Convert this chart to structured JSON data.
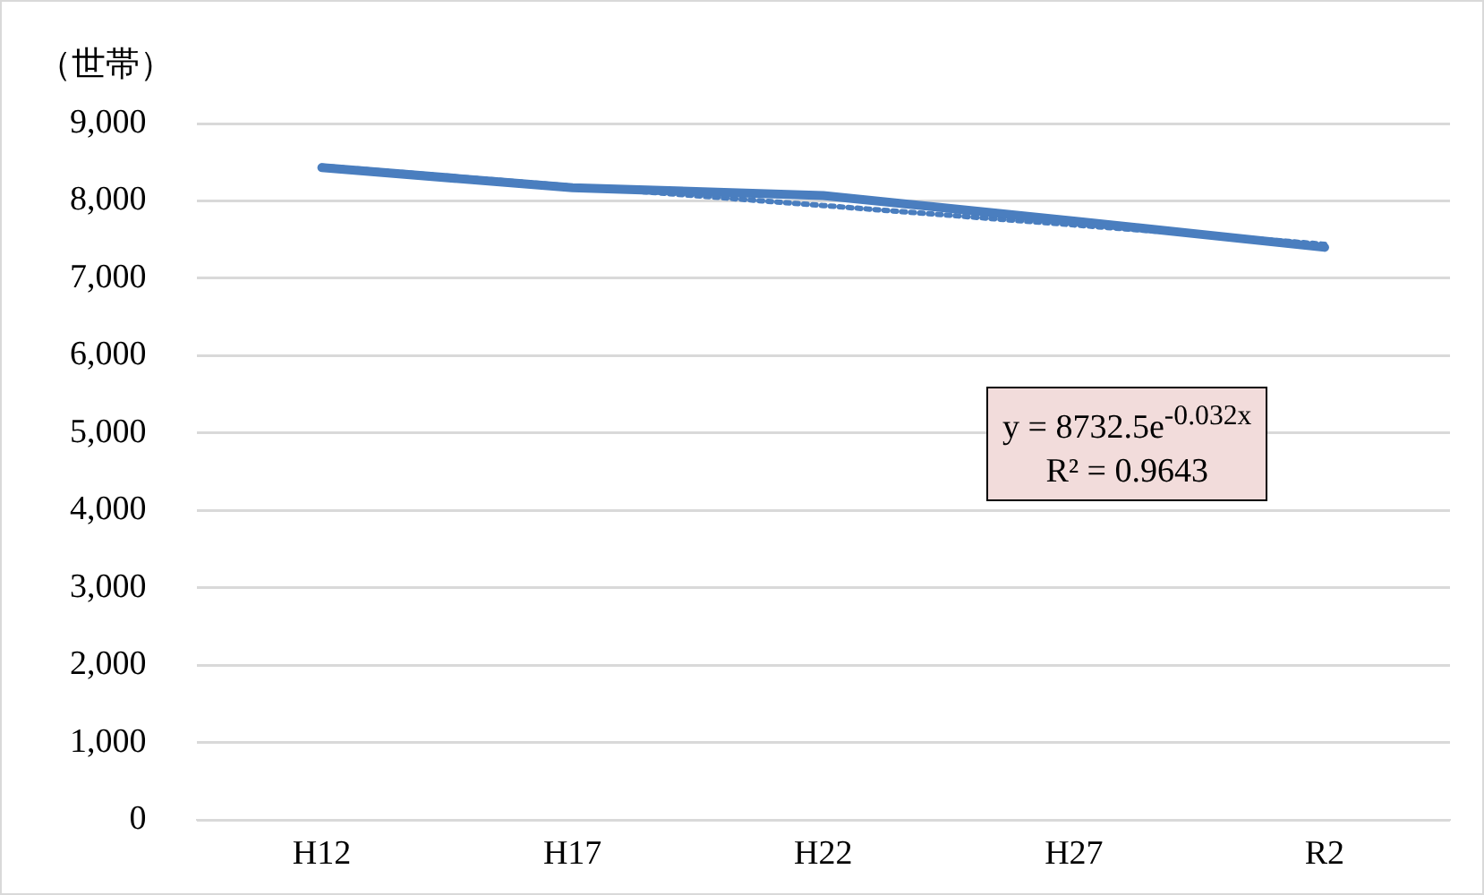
{
  "chart_data": {
    "type": "line",
    "ylabel": "（世帯）",
    "categories": [
      "H12",
      "H17",
      "H22",
      "H27",
      "R2"
    ],
    "series": [
      {
        "color": "#4a7ebf",
        "values": [
          8430,
          8170,
          8070,
          7740,
          7400
        ],
        "line_style": "solid"
      },
      {
        "color": "#4a7ebf",
        "values": [
          8450,
          8190,
          7940,
          7690,
          7440
        ],
        "line_style": "dotted"
      }
    ],
    "ylim": [
      0,
      9000
    ],
    "yticks": [
      0,
      {
        "value": 1000,
        "label": "1,000"
      },
      {
        "value": 2000,
        "label": "2,000"
      },
      {
        "value": 3000,
        "label": "3,000"
      },
      {
        "value": 4000,
        "label": "4,000"
      },
      {
        "value": 5000,
        "label": "5,000"
      },
      {
        "value": 6000,
        "label": "6,000"
      },
      {
        "value": 7000,
        "label": "7,000"
      },
      {
        "value": 8000,
        "label": "8,000"
      },
      {
        "value": 9000,
        "label": "9,000"
      }
    ],
    "grid": "y",
    "legend": false,
    "marker": "none",
    "annotations": [
      "y = 8732.5e$^{-0.032x}$",
      "R² = 0.9643"
    ]
  }
}
